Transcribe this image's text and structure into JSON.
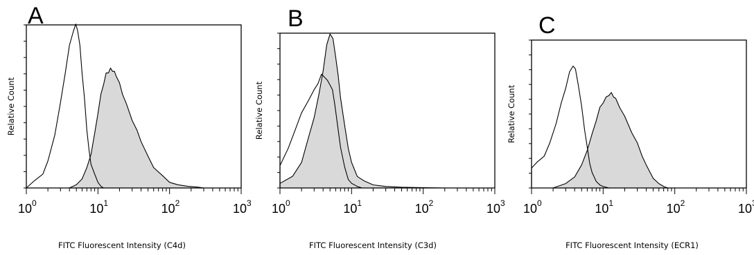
{
  "chart_data": [
    {
      "type": "area",
      "panel_label": "A",
      "xlabel": "FITC Fluorescent Intensity (C4d)",
      "ylabel": "Relative Count",
      "xscale": "log",
      "xlim": [
        1,
        1000
      ],
      "ylim": [
        0,
        100
      ],
      "x_ticks": [
        "0",
        "1",
        "2",
        "3"
      ],
      "series": [
        {
          "fill": "#ffffff",
          "x": [
            1.0,
            1.3,
            1.7,
            2.0,
            2.5,
            3.0,
            3.5,
            4.0,
            4.5,
            4.9,
            5.2,
            5.6,
            6.0,
            6.5,
            7.0,
            7.5,
            8.0,
            9.0,
            10.0,
            11.0,
            12.0
          ],
          "y": [
            0,
            4,
            9,
            16,
            33,
            52,
            71,
            87,
            96,
            100,
            97,
            87,
            71,
            54,
            36,
            23,
            15,
            8,
            4,
            1,
            0
          ]
        },
        {
          "fill": "#d9d9d9",
          "x": [
            4.0,
            5.0,
            6.0,
            7.0,
            8.0,
            9.0,
            10.0,
            11.0,
            12.0,
            13.0,
            14.0,
            15.0,
            16.0,
            17.0,
            18.0,
            20.0,
            22.0,
            25.0,
            30.0,
            35.0,
            40.0,
            50.0,
            60.0,
            80.0,
            100.0,
            130.0,
            180.0,
            250.0,
            300.0
          ],
          "y": [
            0,
            2,
            6,
            12,
            21,
            33,
            46,
            57,
            64,
            70,
            71,
            73,
            72,
            71,
            69,
            64,
            58,
            51,
            42,
            35,
            29,
            19,
            13,
            7,
            4,
            2,
            1,
            0.5,
            0
          ]
        }
      ]
    },
    {
      "type": "area",
      "panel_label": "B",
      "xlabel": "FITC Fluorescent Intensity (C3d)",
      "ylabel": "Relative Count",
      "xscale": "log",
      "xlim": [
        1,
        1000
      ],
      "ylim": [
        0,
        100
      ],
      "x_ticks": [
        "0",
        "1",
        "2",
        "3"
      ],
      "series": [
        {
          "fill": "#ffffff",
          "x": [
            1.0,
            1.3,
            1.6,
            2.0,
            2.5,
            3.0,
            3.4,
            3.8,
            4.2,
            4.6,
            5.0,
            5.4,
            5.8,
            6.2,
            7.0,
            8.0,
            9.0,
            10.0,
            12.0,
            14.0
          ],
          "y": [
            15,
            25,
            37,
            48,
            57,
            63,
            68,
            73,
            72,
            69,
            67,
            63,
            55,
            44,
            27,
            13,
            6,
            3,
            1,
            0
          ]
        },
        {
          "fill": "#d9d9d9",
          "x": [
            1.0,
            1.5,
            2.0,
            2.5,
            3.0,
            3.5,
            4.0,
            4.5,
            5.0,
            5.5,
            6.0,
            6.5,
            7.0,
            8.0,
            9.0,
            10.0,
            12.0,
            15.0,
            20.0,
            30.0,
            50.0,
            100.0,
            200.0
          ],
          "y": [
            3,
            7,
            17,
            32,
            46,
            60,
            76,
            92,
            100,
            96,
            85,
            72,
            59,
            40,
            26,
            16,
            8,
            4,
            2,
            1,
            0.5,
            0.2,
            0
          ]
        }
      ]
    },
    {
      "type": "area",
      "panel_label": "C",
      "xlabel": "FITC Fluorescent Intensity (ECR1)",
      "ylabel": "Relative Count",
      "xscale": "log",
      "xlim": [
        1,
        1000
      ],
      "ylim": [
        0,
        100
      ],
      "x_ticks": [
        "0",
        "1",
        "2",
        "3"
      ],
      "series": [
        {
          "fill": "#ffffff",
          "x": [
            1.0,
            1.2,
            1.5,
            1.8,
            2.2,
            2.6,
            3.0,
            3.4,
            3.8,
            4.1,
            4.5,
            5.0,
            5.5,
            6.0,
            6.5,
            7.0,
            8.0,
            9.0,
            10.0,
            11.0,
            12.0
          ],
          "y": [
            14,
            17,
            22,
            30,
            44,
            57,
            68,
            78,
            83,
            80,
            70,
            55,
            40,
            27,
            17,
            10,
            5,
            2,
            1,
            0.5,
            0
          ]
        },
        {
          "fill": "#d9d9d9",
          "x": [
            2.0,
            3.0,
            4.0,
            5.0,
            6.0,
            7.0,
            8.0,
            9.0,
            10.0,
            11.0,
            12.0,
            13.0,
            14.0,
            15.0,
            17.0,
            20.0,
            25.0,
            30.0,
            35.0,
            40.0,
            50.0,
            60.0,
            70.0,
            80.0
          ],
          "y": [
            0,
            3,
            8,
            15,
            26,
            36,
            46,
            54,
            58,
            61,
            63,
            64,
            62,
            60,
            55,
            48,
            38,
            30,
            22,
            15,
            7,
            3,
            1,
            0
          ]
        }
      ]
    }
  ]
}
